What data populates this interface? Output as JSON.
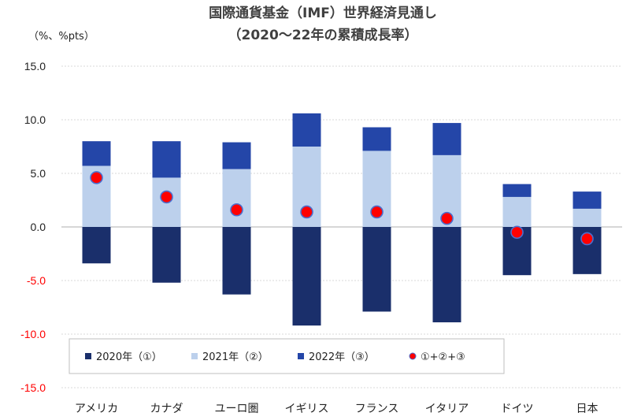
{
  "chart_data": {
    "type": "bar",
    "title": "国際通貨基金（IMF）世界経済見通し",
    "subtitle": "（2020〜22年の累積成長率）",
    "ylabel": "（%、%pts）",
    "xlabel": "",
    "ylim": [
      -15,
      15
    ],
    "yticks": [
      "15.0",
      "10.0",
      "5.0",
      "0.0",
      "-5.0",
      "-10.0",
      "-15.0"
    ],
    "yticks_values": [
      15,
      10,
      5,
      0,
      -5,
      -10,
      -15
    ],
    "grid": true,
    "stacked": true,
    "categories": [
      "アメリカ",
      "カナダ",
      "ユーロ圏",
      "イギリス",
      "フランス",
      "イタリア",
      "ドイツ",
      "日本"
    ],
    "series": [
      {
        "name": "2020年（①）",
        "kind": "bar",
        "color": "#1a2f6b",
        "values": [
          -3.4,
          -5.2,
          -6.3,
          -9.2,
          -7.9,
          -8.9,
          -4.5,
          -4.4
        ]
      },
      {
        "name": "2021年（②）",
        "kind": "bar",
        "color": "#bcd0ec",
        "values": [
          5.7,
          4.6,
          5.4,
          7.5,
          7.1,
          6.7,
          2.8,
          1.7
        ]
      },
      {
        "name": "2022年（③）",
        "kind": "bar",
        "color": "#2446a8",
        "values": [
          2.3,
          3.4,
          2.5,
          3.1,
          2.2,
          3.0,
          1.2,
          1.6
        ]
      },
      {
        "name": "①+②+③",
        "kind": "marker",
        "color": "#ff0000",
        "values": [
          4.6,
          2.8,
          1.6,
          1.4,
          1.4,
          0.8,
          -0.5,
          -1.1
        ]
      }
    ],
    "legend_position": "bottom-inside"
  }
}
